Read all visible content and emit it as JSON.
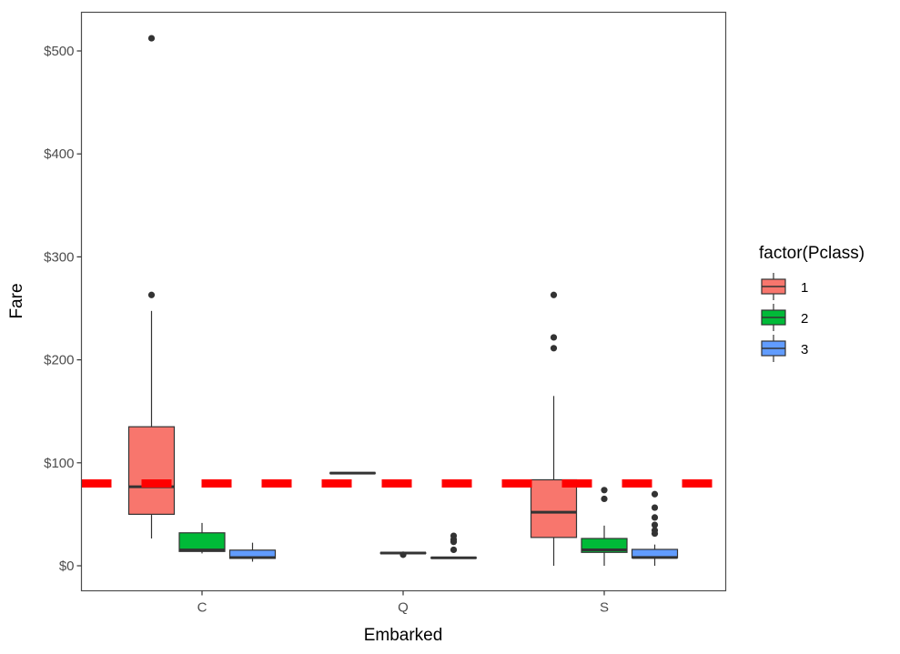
{
  "chart_data": {
    "type": "boxplot",
    "xlabel": "Embarked",
    "ylabel": "Fare",
    "categories": [
      "C",
      "Q",
      "S"
    ],
    "y_ticks": [
      0,
      100,
      200,
      300,
      400,
      500
    ],
    "y_tick_labels": [
      "$0",
      "$100",
      "$200",
      "$300",
      "$400",
      "$500"
    ],
    "ylim": [
      -25,
      537
    ],
    "grid": false,
    "legend": {
      "title": "factor(Pclass)",
      "placement": "right",
      "entries": [
        {
          "label": "1",
          "color": "#F8766D"
        },
        {
          "label": "2",
          "color": "#00BA38"
        },
        {
          "label": "3",
          "color": "#619CFF"
        }
      ]
    },
    "reference_line": {
      "y": 80,
      "color": "#FF0000",
      "style": "dashed"
    },
    "series": [
      {
        "name": "1",
        "color": "#F8766D",
        "boxes": [
          {
            "category": "C",
            "lower_whisker": 26.5,
            "q1": 50,
            "median": 76.7,
            "q3": 135,
            "upper_whisker": 247.5,
            "outliers": [
              263,
              512.3
            ]
          },
          {
            "category": "Q",
            "lower_whisker": 90,
            "q1": 90,
            "median": 90,
            "q3": 90,
            "upper_whisker": 90,
            "outliers": []
          },
          {
            "category": "S",
            "lower_whisker": 0,
            "q1": 27.5,
            "median": 52,
            "q3": 83.5,
            "upper_whisker": 164.9,
            "outliers": [
              211.3,
              221.8,
              263
            ]
          }
        ]
      },
      {
        "name": "2",
        "color": "#00BA38",
        "boxes": [
          {
            "category": "C",
            "lower_whisker": 12,
            "q1": 13.9,
            "median": 15.3,
            "q3": 32,
            "upper_whisker": 41.6,
            "outliers": []
          },
          {
            "category": "Q",
            "lower_whisker": 12.35,
            "q1": 12.35,
            "median": 12.35,
            "q3": 12.35,
            "upper_whisker": 12.35,
            "outliers": [
              10.7
            ]
          },
          {
            "category": "S",
            "lower_whisker": 0,
            "q1": 13,
            "median": 15.5,
            "q3": 26.5,
            "upper_whisker": 39,
            "outliers": [
              65,
              73.5
            ]
          }
        ]
      },
      {
        "name": "3",
        "color": "#619CFF",
        "boxes": [
          {
            "category": "C",
            "lower_whisker": 4,
            "q1": 7.2,
            "median": 7.9,
            "q3": 15.2,
            "upper_whisker": 22.4,
            "outliers": []
          },
          {
            "category": "Q",
            "lower_whisker": 6.75,
            "q1": 7.75,
            "median": 7.75,
            "q3": 7.75,
            "upper_whisker": 7.75,
            "outliers": [
              15.5,
              23.25,
              25.5,
              29.1
            ]
          },
          {
            "category": "S",
            "lower_whisker": 0,
            "q1": 7.85,
            "median": 8.05,
            "q3": 15.9,
            "upper_whisker": 20.6,
            "outliers": [
              31.3,
              34.4,
              39.7,
              46.9,
              56.5,
              69.55
            ]
          }
        ]
      }
    ]
  }
}
